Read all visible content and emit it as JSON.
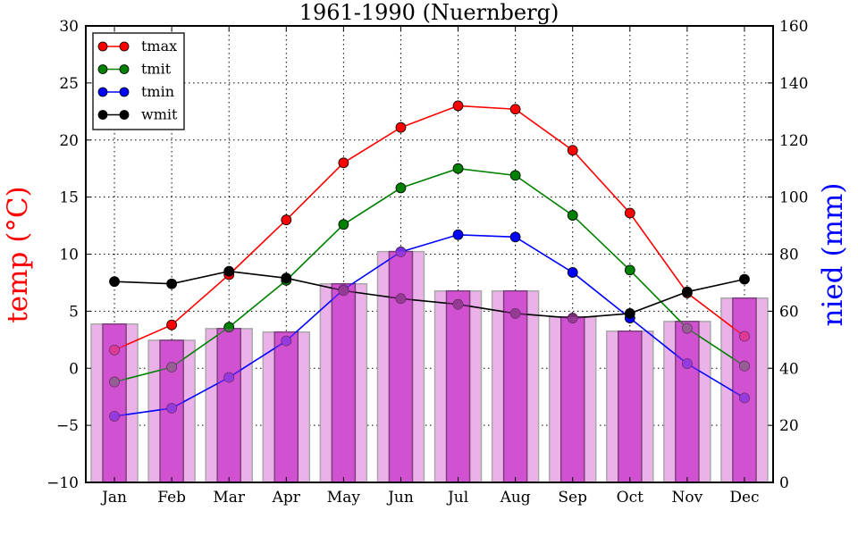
{
  "chart_data": {
    "type": "line",
    "title": "1961-1990 (Nuernberg)",
    "xlabel": "",
    "ylabel": "temp ($^\\circ$C)",
    "ylabel_display": "temp (°C)",
    "ylabel_right": "nied (mm)",
    "ylim": [
      -10,
      30
    ],
    "ylim_right": [
      0,
      160
    ],
    "yticks": [
      -10,
      -5,
      0,
      5,
      10,
      15,
      20,
      25,
      30
    ],
    "yticks_display": [
      "−10",
      "−5",
      "0",
      "5",
      "10",
      "15",
      "20",
      "25",
      "30"
    ],
    "yticks_right": [
      "0",
      "20",
      "40",
      "60",
      "80",
      "100",
      "120",
      "140",
      "160"
    ],
    "grid": true,
    "legend_position": "top-left",
    "categories": [
      "Jan",
      "Feb",
      "Mar",
      "Apr",
      "May",
      "Jun",
      "Jul",
      "Aug",
      "Sep",
      "Oct",
      "Nov",
      "Dec"
    ],
    "series": [
      {
        "name": "tmax",
        "color": "#ff0000",
        "axis": "left",
        "values": [
          1.6,
          3.8,
          8.2,
          13.0,
          18.0,
          21.1,
          23.0,
          22.7,
          19.1,
          13.6,
          6.6,
          2.8
        ]
      },
      {
        "name": "tmit",
        "color": "#008000",
        "axis": "left",
        "values": [
          -1.2,
          0.1,
          3.6,
          7.7,
          12.6,
          15.8,
          17.5,
          16.9,
          13.4,
          8.6,
          3.5,
          0.2
        ]
      },
      {
        "name": "tmin",
        "color": "#0000ff",
        "axis": "left",
        "values": [
          -4.2,
          -3.5,
          -0.8,
          2.4,
          6.9,
          10.2,
          11.7,
          11.5,
          8.4,
          4.4,
          0.4,
          -2.6
        ]
      },
      {
        "name": "wmit",
        "color": "#000000",
        "axis": "left",
        "values": [
          7.6,
          7.4,
          8.5,
          7.9,
          6.8,
          6.1,
          5.6,
          4.8,
          4.4,
          4.8,
          6.7,
          7.8
        ]
      }
    ],
    "bars": {
      "name": "nied",
      "axis": "right",
      "unit": "mm",
      "values": [
        55.5,
        49.8,
        53.9,
        52.7,
        69.6,
        80.9,
        67.1,
        67.1,
        58.0,
        53.0,
        56.4,
        64.6
      ],
      "color_wide": "#ebb2ea",
      "color_narrow": "#d252d0"
    },
    "colors": {
      "left_label": "#ff0000",
      "right_label": "#0000ff"
    }
  }
}
